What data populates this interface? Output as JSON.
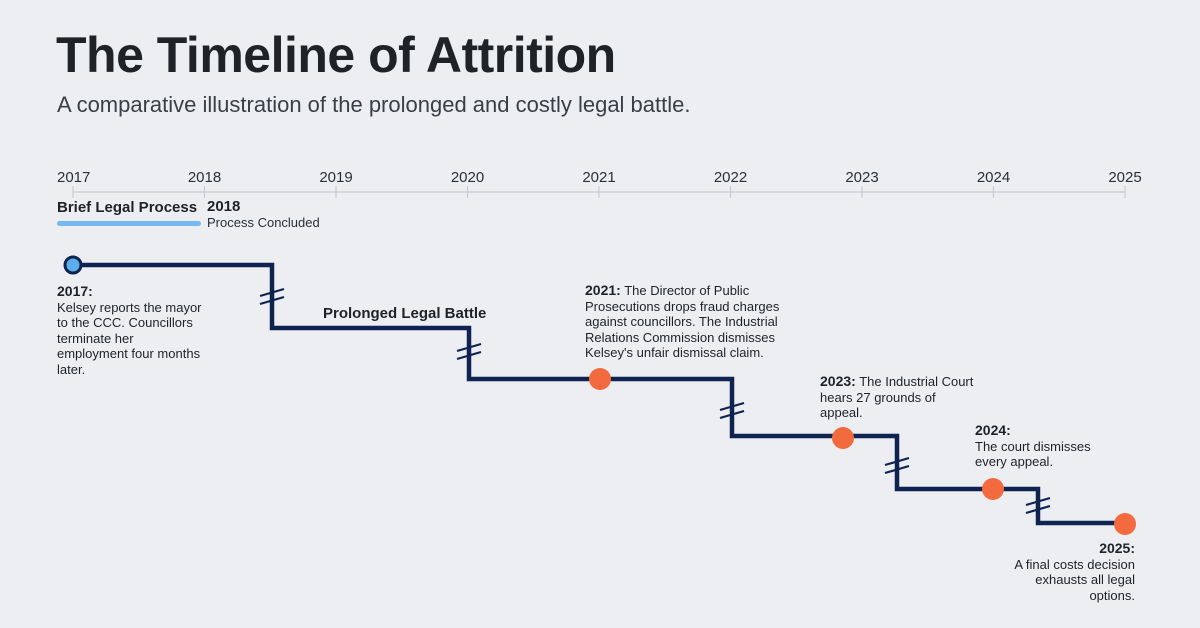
{
  "header": {
    "title": "The Timeline of Attrition",
    "subtitle": "A comparative illustration of the prolonged and costly legal battle."
  },
  "axis": {
    "years": [
      "2017",
      "2018",
      "2019",
      "2020",
      "2021",
      "2022",
      "2023",
      "2024",
      "2025"
    ]
  },
  "brief_process": {
    "label": "Brief Legal Process",
    "end_year": "2018",
    "status": "Process Concluded",
    "color": "#74b9ef"
  },
  "prolonged_battle": {
    "label": "Prolonged Legal Battle",
    "line_color": "#0f2350",
    "marker_color": "#f26a3d"
  },
  "events": [
    {
      "year": "2017:",
      "text": "Kelsey reports the mayor to the CCC. Councillors terminate her employment four months later."
    },
    {
      "year": "2021:",
      "text": "The Director of Public Prosecutions drops fraud charges against councillors. The Industrial Relations Commission dismisses Kelsey's unfair dismissal claim."
    },
    {
      "year": "2023:",
      "text": "The Industrial Court hears 27 grounds of appeal."
    },
    {
      "year": "2024:",
      "text": "The court dismisses every appeal."
    },
    {
      "year": "2025:",
      "text": "A final costs decision exhausts all legal options."
    }
  ]
}
